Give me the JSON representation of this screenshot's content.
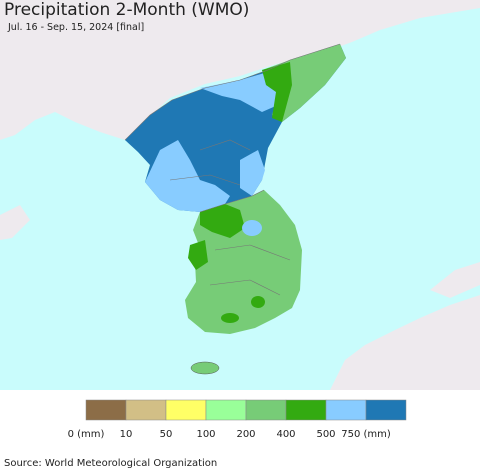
{
  "header": {
    "title": "Precipitation 2-Month (WMO)",
    "subtitle": "Jul. 16 - Sep. 15, 2024 [final]"
  },
  "legend": {
    "items": [
      {
        "color": "#8c6d47",
        "label": "0 (mm)"
      },
      {
        "color": "#d2bf86",
        "label": "10"
      },
      {
        "color": "#ffff66",
        "label": "50"
      },
      {
        "color": "#99ff99",
        "label": "100"
      },
      {
        "color": "#77cc77",
        "label": "200"
      },
      {
        "color": "#33aa11",
        "label": "400"
      },
      {
        "color": "#88ccff",
        "label": "500"
      },
      {
        "color": "#1f78b4",
        "label": "750 (mm)"
      }
    ]
  },
  "footer": {
    "source": "Source: World Meteorological Organization"
  }
}
